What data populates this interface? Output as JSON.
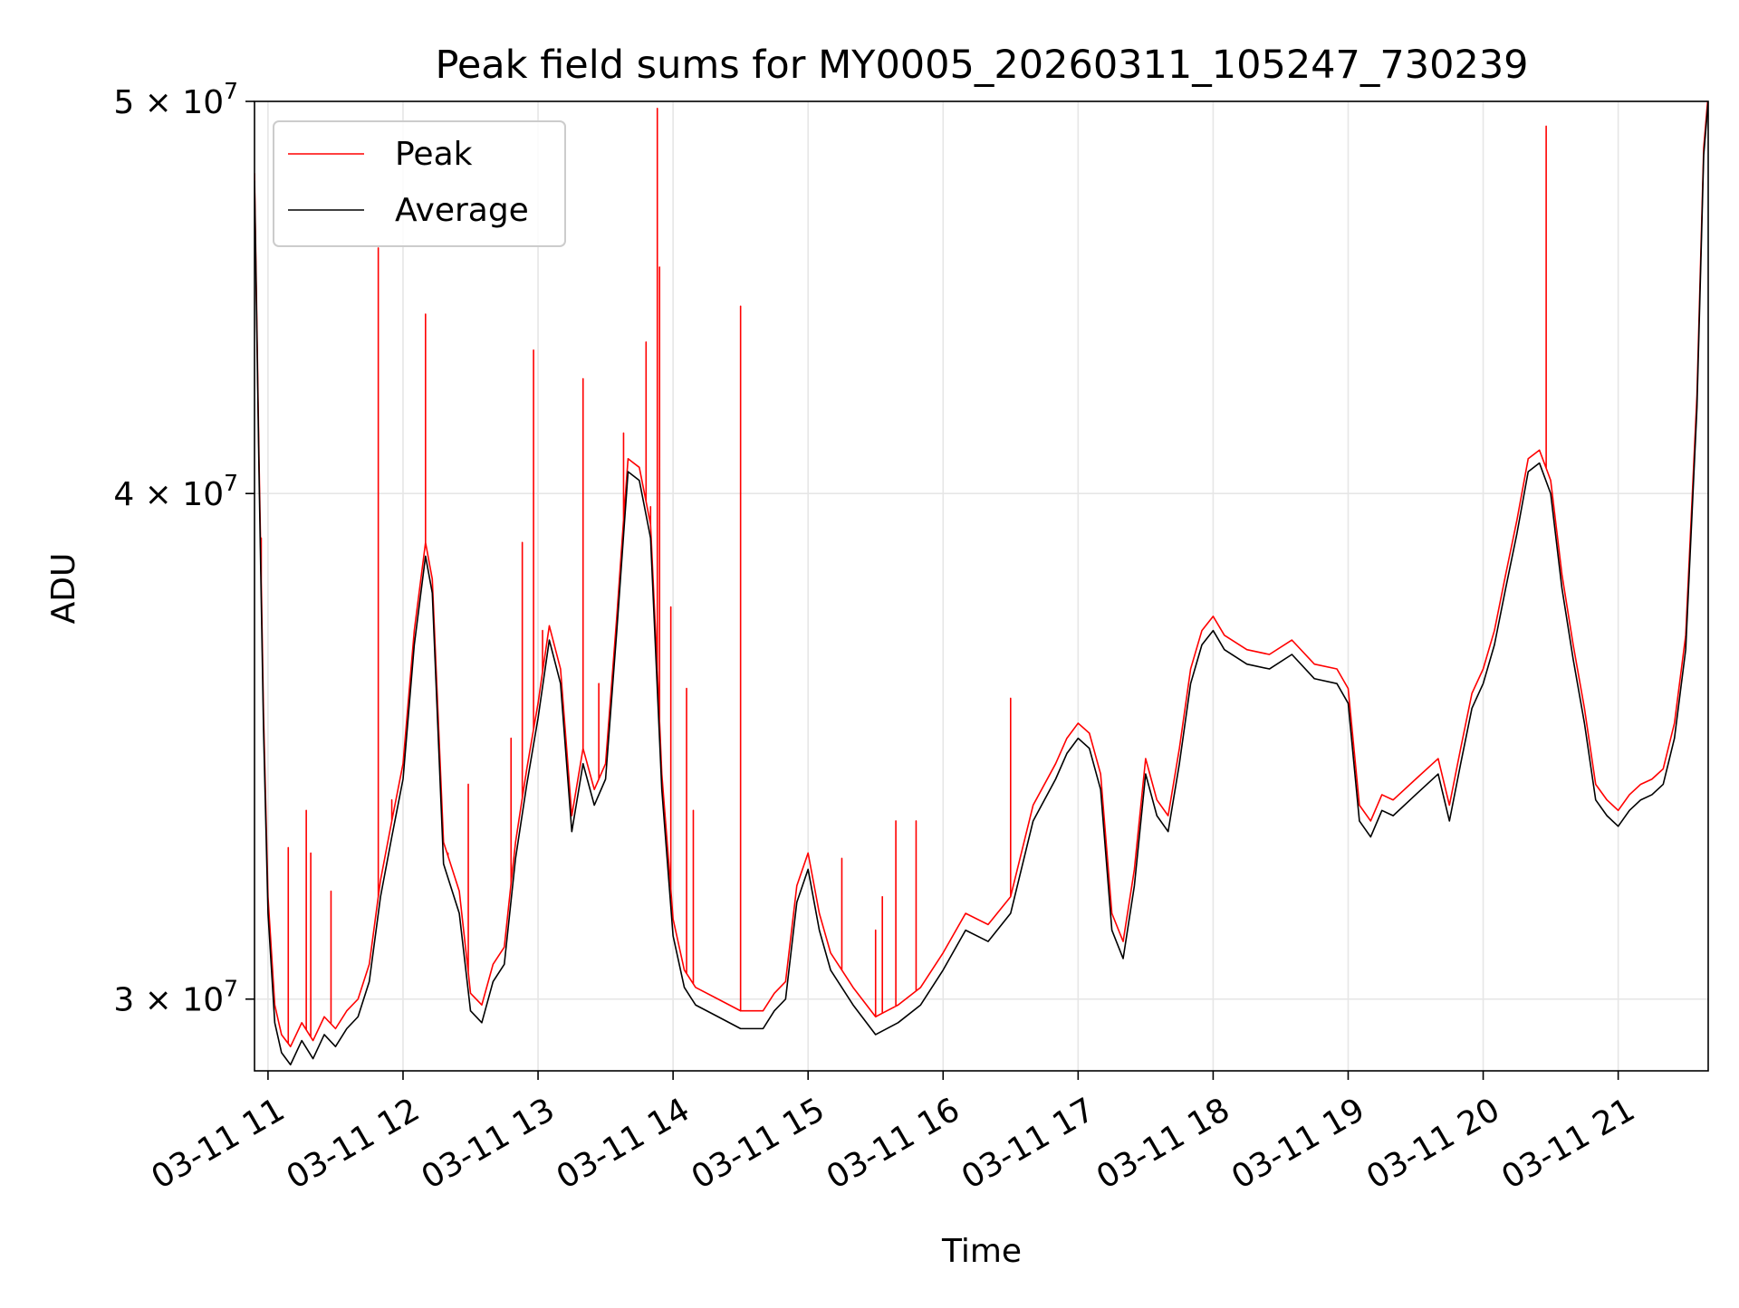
{
  "chart_data": {
    "type": "line",
    "title": "Peak field sums for MY0005_20260311_105247_730239",
    "xlabel": "Time",
    "ylabel": "ADU",
    "y_scale": "log",
    "grid": true,
    "legend_position": "top-left",
    "xlim": [
      "2026-03-11 10:54",
      "2026-03-11 21:40"
    ],
    "ylim": [
      28800000,
      50000000
    ],
    "x_ticks": [
      {
        "value": "2026-03-11 11:00",
        "label": "03-11 11"
      },
      {
        "value": "2026-03-11 12:00",
        "label": "03-11 12"
      },
      {
        "value": "2026-03-11 13:00",
        "label": "03-11 13"
      },
      {
        "value": "2026-03-11 14:00",
        "label": "03-11 14"
      },
      {
        "value": "2026-03-11 15:00",
        "label": "03-11 15"
      },
      {
        "value": "2026-03-11 16:00",
        "label": "03-11 16"
      },
      {
        "value": "2026-03-11 17:00",
        "label": "03-11 17"
      },
      {
        "value": "2026-03-11 18:00",
        "label": "03-11 18"
      },
      {
        "value": "2026-03-11 19:00",
        "label": "03-11 19"
      },
      {
        "value": "2026-03-11 20:00",
        "label": "03-11 20"
      },
      {
        "value": "2026-03-11 21:00",
        "label": "03-11 21"
      }
    ],
    "y_ticks": [
      {
        "value": 30000000,
        "mantissa": "3",
        "exponent": "7"
      },
      {
        "value": 40000000,
        "mantissa": "4",
        "exponent": "7"
      },
      {
        "value": 50000000,
        "mantissa": "5",
        "exponent": "7"
      }
    ],
    "series": [
      {
        "name": "Average",
        "color": "#000000",
        "x": [
          "2026-03-11 10:54",
          "2026-03-11 10:56",
          "2026-03-11 10:58",
          "2026-03-11 11:00",
          "2026-03-11 11:03",
          "2026-03-11 11:06",
          "2026-03-11 11:10",
          "2026-03-11 11:15",
          "2026-03-11 11:20",
          "2026-03-11 11:25",
          "2026-03-11 11:30",
          "2026-03-11 11:35",
          "2026-03-11 11:40",
          "2026-03-11 11:45",
          "2026-03-11 11:50",
          "2026-03-11 11:55",
          "2026-03-11 12:00",
          "2026-03-11 12:05",
          "2026-03-11 12:10",
          "2026-03-11 12:13",
          "2026-03-11 12:18",
          "2026-03-11 12:25",
          "2026-03-11 12:30",
          "2026-03-11 12:35",
          "2026-03-11 12:40",
          "2026-03-11 12:45",
          "2026-03-11 12:50",
          "2026-03-11 12:55",
          "2026-03-11 13:00",
          "2026-03-11 13:05",
          "2026-03-11 13:10",
          "2026-03-11 13:15",
          "2026-03-11 13:20",
          "2026-03-11 13:25",
          "2026-03-11 13:30",
          "2026-03-11 13:35",
          "2026-03-11 13:40",
          "2026-03-11 13:45",
          "2026-03-11 13:50",
          "2026-03-11 13:55",
          "2026-03-11 14:00",
          "2026-03-11 14:05",
          "2026-03-11 14:10",
          "2026-03-11 14:20",
          "2026-03-11 14:30",
          "2026-03-11 14:40",
          "2026-03-11 14:45",
          "2026-03-11 14:50",
          "2026-03-11 14:55",
          "2026-03-11 15:00",
          "2026-03-11 15:05",
          "2026-03-11 15:10",
          "2026-03-11 15:20",
          "2026-03-11 15:30",
          "2026-03-11 15:40",
          "2026-03-11 15:50",
          "2026-03-11 16:00",
          "2026-03-11 16:10",
          "2026-03-11 16:20",
          "2026-03-11 16:30",
          "2026-03-11 16:40",
          "2026-03-11 16:50",
          "2026-03-11 16:55",
          "2026-03-11 17:00",
          "2026-03-11 17:05",
          "2026-03-11 17:10",
          "2026-03-11 17:15",
          "2026-03-11 17:20",
          "2026-03-11 17:25",
          "2026-03-11 17:30",
          "2026-03-11 17:35",
          "2026-03-11 17:40",
          "2026-03-11 17:45",
          "2026-03-11 17:50",
          "2026-03-11 17:55",
          "2026-03-11 18:00",
          "2026-03-11 18:05",
          "2026-03-11 18:15",
          "2026-03-11 18:25",
          "2026-03-11 18:35",
          "2026-03-11 18:45",
          "2026-03-11 18:55",
          "2026-03-11 19:00",
          "2026-03-11 19:05",
          "2026-03-11 19:10",
          "2026-03-11 19:15",
          "2026-03-11 19:20",
          "2026-03-11 19:30",
          "2026-03-11 19:40",
          "2026-03-11 19:45",
          "2026-03-11 19:50",
          "2026-03-11 19:55",
          "2026-03-11 20:00",
          "2026-03-11 20:05",
          "2026-03-11 20:10",
          "2026-03-11 20:15",
          "2026-03-11 20:20",
          "2026-03-11 20:25",
          "2026-03-11 20:30",
          "2026-03-11 20:35",
          "2026-03-11 20:40",
          "2026-03-11 20:45",
          "2026-03-11 20:50",
          "2026-03-11 20:55",
          "2026-03-11 21:00",
          "2026-03-11 21:05",
          "2026-03-11 21:10",
          "2026-03-11 21:15",
          "2026-03-11 21:20",
          "2026-03-11 21:25",
          "2026-03-11 21:30",
          "2026-03-11 21:35",
          "2026-03-11 21:38",
          "2026-03-11 21:40"
        ],
        "values": [
          47800000,
          40500000,
          35000000,
          31500000,
          29600000,
          29100000,
          28900000,
          29300000,
          29000000,
          29400000,
          29200000,
          29500000,
          29700000,
          30300000,
          31800000,
          32900000,
          34000000,
          36700000,
          38600000,
          37800000,
          32400000,
          31500000,
          29800000,
          29600000,
          30300000,
          30600000,
          32500000,
          33900000,
          35200000,
          36800000,
          35900000,
          33000000,
          34300000,
          33500000,
          34000000,
          37000000,
          40500000,
          40300000,
          39000000,
          33800000,
          31100000,
          30200000,
          29900000,
          29700000,
          29500000,
          29500000,
          29800000,
          30000000,
          31700000,
          32300000,
          31200000,
          30500000,
          29900000,
          29400000,
          29600000,
          29900000,
          30500000,
          31200000,
          31000000,
          31500000,
          33200000,
          34000000,
          34500000,
          34800000,
          34600000,
          33800000,
          31200000,
          30700000,
          32000000,
          34100000,
          33300000,
          33000000,
          34300000,
          35900000,
          36700000,
          37000000,
          36600000,
          36300000,
          36200000,
          36500000,
          36000000,
          35900000,
          35500000,
          33200000,
          32900000,
          33400000,
          33300000,
          33700000,
          34100000,
          33200000,
          34300000,
          35400000,
          35900000,
          36700000,
          37900000,
          39100000,
          40500000,
          40700000,
          40000000,
          37900000,
          36400000,
          35100000,
          33600000,
          33300000,
          33100000,
          33400000,
          33600000,
          33700000,
          33900000,
          34800000,
          36600000,
          42000000,
          48500000,
          50000000
        ],
        "spikes": []
      },
      {
        "name": "Peak",
        "color": "#ff0000",
        "x": [
          "2026-03-11 10:54",
          "2026-03-11 10:56",
          "2026-03-11 10:58",
          "2026-03-11 11:00",
          "2026-03-11 11:03",
          "2026-03-11 11:06",
          "2026-03-11 11:10",
          "2026-03-11 11:15",
          "2026-03-11 11:20",
          "2026-03-11 11:25",
          "2026-03-11 11:30",
          "2026-03-11 11:35",
          "2026-03-11 11:40",
          "2026-03-11 11:45",
          "2026-03-11 11:50",
          "2026-03-11 11:55",
          "2026-03-11 12:00",
          "2026-03-11 12:05",
          "2026-03-11 12:10",
          "2026-03-11 12:13",
          "2026-03-11 12:18",
          "2026-03-11 12:25",
          "2026-03-11 12:30",
          "2026-03-11 12:35",
          "2026-03-11 12:40",
          "2026-03-11 12:45",
          "2026-03-11 12:50",
          "2026-03-11 12:55",
          "2026-03-11 13:00",
          "2026-03-11 13:05",
          "2026-03-11 13:10",
          "2026-03-11 13:15",
          "2026-03-11 13:20",
          "2026-03-11 13:25",
          "2026-03-11 13:30",
          "2026-03-11 13:35",
          "2026-03-11 13:40",
          "2026-03-11 13:45",
          "2026-03-11 13:50",
          "2026-03-11 13:55",
          "2026-03-11 14:00",
          "2026-03-11 14:05",
          "2026-03-11 14:10",
          "2026-03-11 14:20",
          "2026-03-11 14:30",
          "2026-03-11 14:40",
          "2026-03-11 14:45",
          "2026-03-11 14:50",
          "2026-03-11 14:55",
          "2026-03-11 15:00",
          "2026-03-11 15:05",
          "2026-03-11 15:10",
          "2026-03-11 15:20",
          "2026-03-11 15:30",
          "2026-03-11 15:40",
          "2026-03-11 15:50",
          "2026-03-11 16:00",
          "2026-03-11 16:10",
          "2026-03-11 16:20",
          "2026-03-11 16:30",
          "2026-03-11 16:40",
          "2026-03-11 16:50",
          "2026-03-11 16:55",
          "2026-03-11 17:00",
          "2026-03-11 17:05",
          "2026-03-11 17:10",
          "2026-03-11 17:15",
          "2026-03-11 17:20",
          "2026-03-11 17:25",
          "2026-03-11 17:30",
          "2026-03-11 17:35",
          "2026-03-11 17:40",
          "2026-03-11 17:45",
          "2026-03-11 17:50",
          "2026-03-11 17:55",
          "2026-03-11 18:00",
          "2026-03-11 18:05",
          "2026-03-11 18:15",
          "2026-03-11 18:25",
          "2026-03-11 18:35",
          "2026-03-11 18:45",
          "2026-03-11 18:55",
          "2026-03-11 19:00",
          "2026-03-11 19:05",
          "2026-03-11 19:10",
          "2026-03-11 19:15",
          "2026-03-11 19:20",
          "2026-03-11 19:30",
          "2026-03-11 19:40",
          "2026-03-11 19:45",
          "2026-03-11 19:50",
          "2026-03-11 19:55",
          "2026-03-11 20:00",
          "2026-03-11 20:05",
          "2026-03-11 20:10",
          "2026-03-11 20:15",
          "2026-03-11 20:20",
          "2026-03-11 20:25",
          "2026-03-11 20:30",
          "2026-03-11 20:35",
          "2026-03-11 20:40",
          "2026-03-11 20:45",
          "2026-03-11 20:50",
          "2026-03-11 20:55",
          "2026-03-11 21:00",
          "2026-03-11 21:05",
          "2026-03-11 21:10",
          "2026-03-11 21:15",
          "2026-03-11 21:20",
          "2026-03-11 21:25",
          "2026-03-11 21:30",
          "2026-03-11 21:35",
          "2026-03-11 21:38",
          "2026-03-11 21:40"
        ],
        "values": [
          48000000,
          40800000,
          35300000,
          31800000,
          29900000,
          29400000,
          29200000,
          29600000,
          29300000,
          29700000,
          29500000,
          29800000,
          30000000,
          30600000,
          32100000,
          33200000,
          34300000,
          37000000,
          38900000,
          38100000,
          32800000,
          31900000,
          30100000,
          29900000,
          30600000,
          30900000,
          32800000,
          34200000,
          35500000,
          37100000,
          36200000,
          33300000,
          34600000,
          33800000,
          34300000,
          37300000,
          40800000,
          40600000,
          39300000,
          34100000,
          31400000,
          30500000,
          30200000,
          30000000,
          29800000,
          29800000,
          30100000,
          30300000,
          32000000,
          32600000,
          31500000,
          30800000,
          30200000,
          29700000,
          29900000,
          30200000,
          30800000,
          31500000,
          31300000,
          31800000,
          33500000,
          34300000,
          34800000,
          35100000,
          34900000,
          34100000,
          31500000,
          31000000,
          32300000,
          34400000,
          33600000,
          33300000,
          34600000,
          36200000,
          37000000,
          37300000,
          36900000,
          36600000,
          36500000,
          36800000,
          36300000,
          36200000,
          35800000,
          33500000,
          33200000,
          33700000,
          33600000,
          34000000,
          34400000,
          33500000,
          34600000,
          35700000,
          36200000,
          37000000,
          38200000,
          39400000,
          40800000,
          41000000,
          40300000,
          38200000,
          36700000,
          35400000,
          33900000,
          33600000,
          33400000,
          33700000,
          33900000,
          34000000,
          34200000,
          35100000,
          36900000,
          42300000,
          48700000,
          50200000
        ],
        "spikes": [
          {
            "x": "2026-03-11 10:57",
            "value": 39000000
          },
          {
            "x": "2026-03-11 11:09",
            "value": 32700000
          },
          {
            "x": "2026-03-11 11:17",
            "value": 33400000
          },
          {
            "x": "2026-03-11 11:19",
            "value": 32600000
          },
          {
            "x": "2026-03-11 11:28",
            "value": 31900000
          },
          {
            "x": "2026-03-11 11:49",
            "value": 46000000
          },
          {
            "x": "2026-03-11 11:55",
            "value": 33600000
          },
          {
            "x": "2026-03-11 12:10",
            "value": 44300000
          },
          {
            "x": "2026-03-11 12:20",
            "value": 32600000
          },
          {
            "x": "2026-03-11 12:29",
            "value": 33900000
          },
          {
            "x": "2026-03-11 12:48",
            "value": 34800000
          },
          {
            "x": "2026-03-11 12:53",
            "value": 38900000
          },
          {
            "x": "2026-03-11 12:58",
            "value": 43400000
          },
          {
            "x": "2026-03-11 13:02",
            "value": 37000000
          },
          {
            "x": "2026-03-11 13:20",
            "value": 42700000
          },
          {
            "x": "2026-03-11 13:27",
            "value": 35900000
          },
          {
            "x": "2026-03-11 13:38",
            "value": 41400000
          },
          {
            "x": "2026-03-11 13:48",
            "value": 43600000
          },
          {
            "x": "2026-03-11 13:50",
            "value": 39700000
          },
          {
            "x": "2026-03-11 13:53",
            "value": 49800000
          },
          {
            "x": "2026-03-11 13:54",
            "value": 45500000
          },
          {
            "x": "2026-03-11 13:59",
            "value": 37500000
          },
          {
            "x": "2026-03-11 14:06",
            "value": 35800000
          },
          {
            "x": "2026-03-11 14:09",
            "value": 33400000
          },
          {
            "x": "2026-03-11 14:30",
            "value": 44500000
          },
          {
            "x": "2026-03-11 15:15",
            "value": 32500000
          },
          {
            "x": "2026-03-11 15:30",
            "value": 31200000
          },
          {
            "x": "2026-03-11 15:33",
            "value": 31800000
          },
          {
            "x": "2026-03-11 15:39",
            "value": 33200000
          },
          {
            "x": "2026-03-11 15:48",
            "value": 33200000
          },
          {
            "x": "2026-03-11 16:30",
            "value": 35600000
          },
          {
            "x": "2026-03-11 20:28",
            "value": 49300000
          }
        ]
      }
    ]
  }
}
